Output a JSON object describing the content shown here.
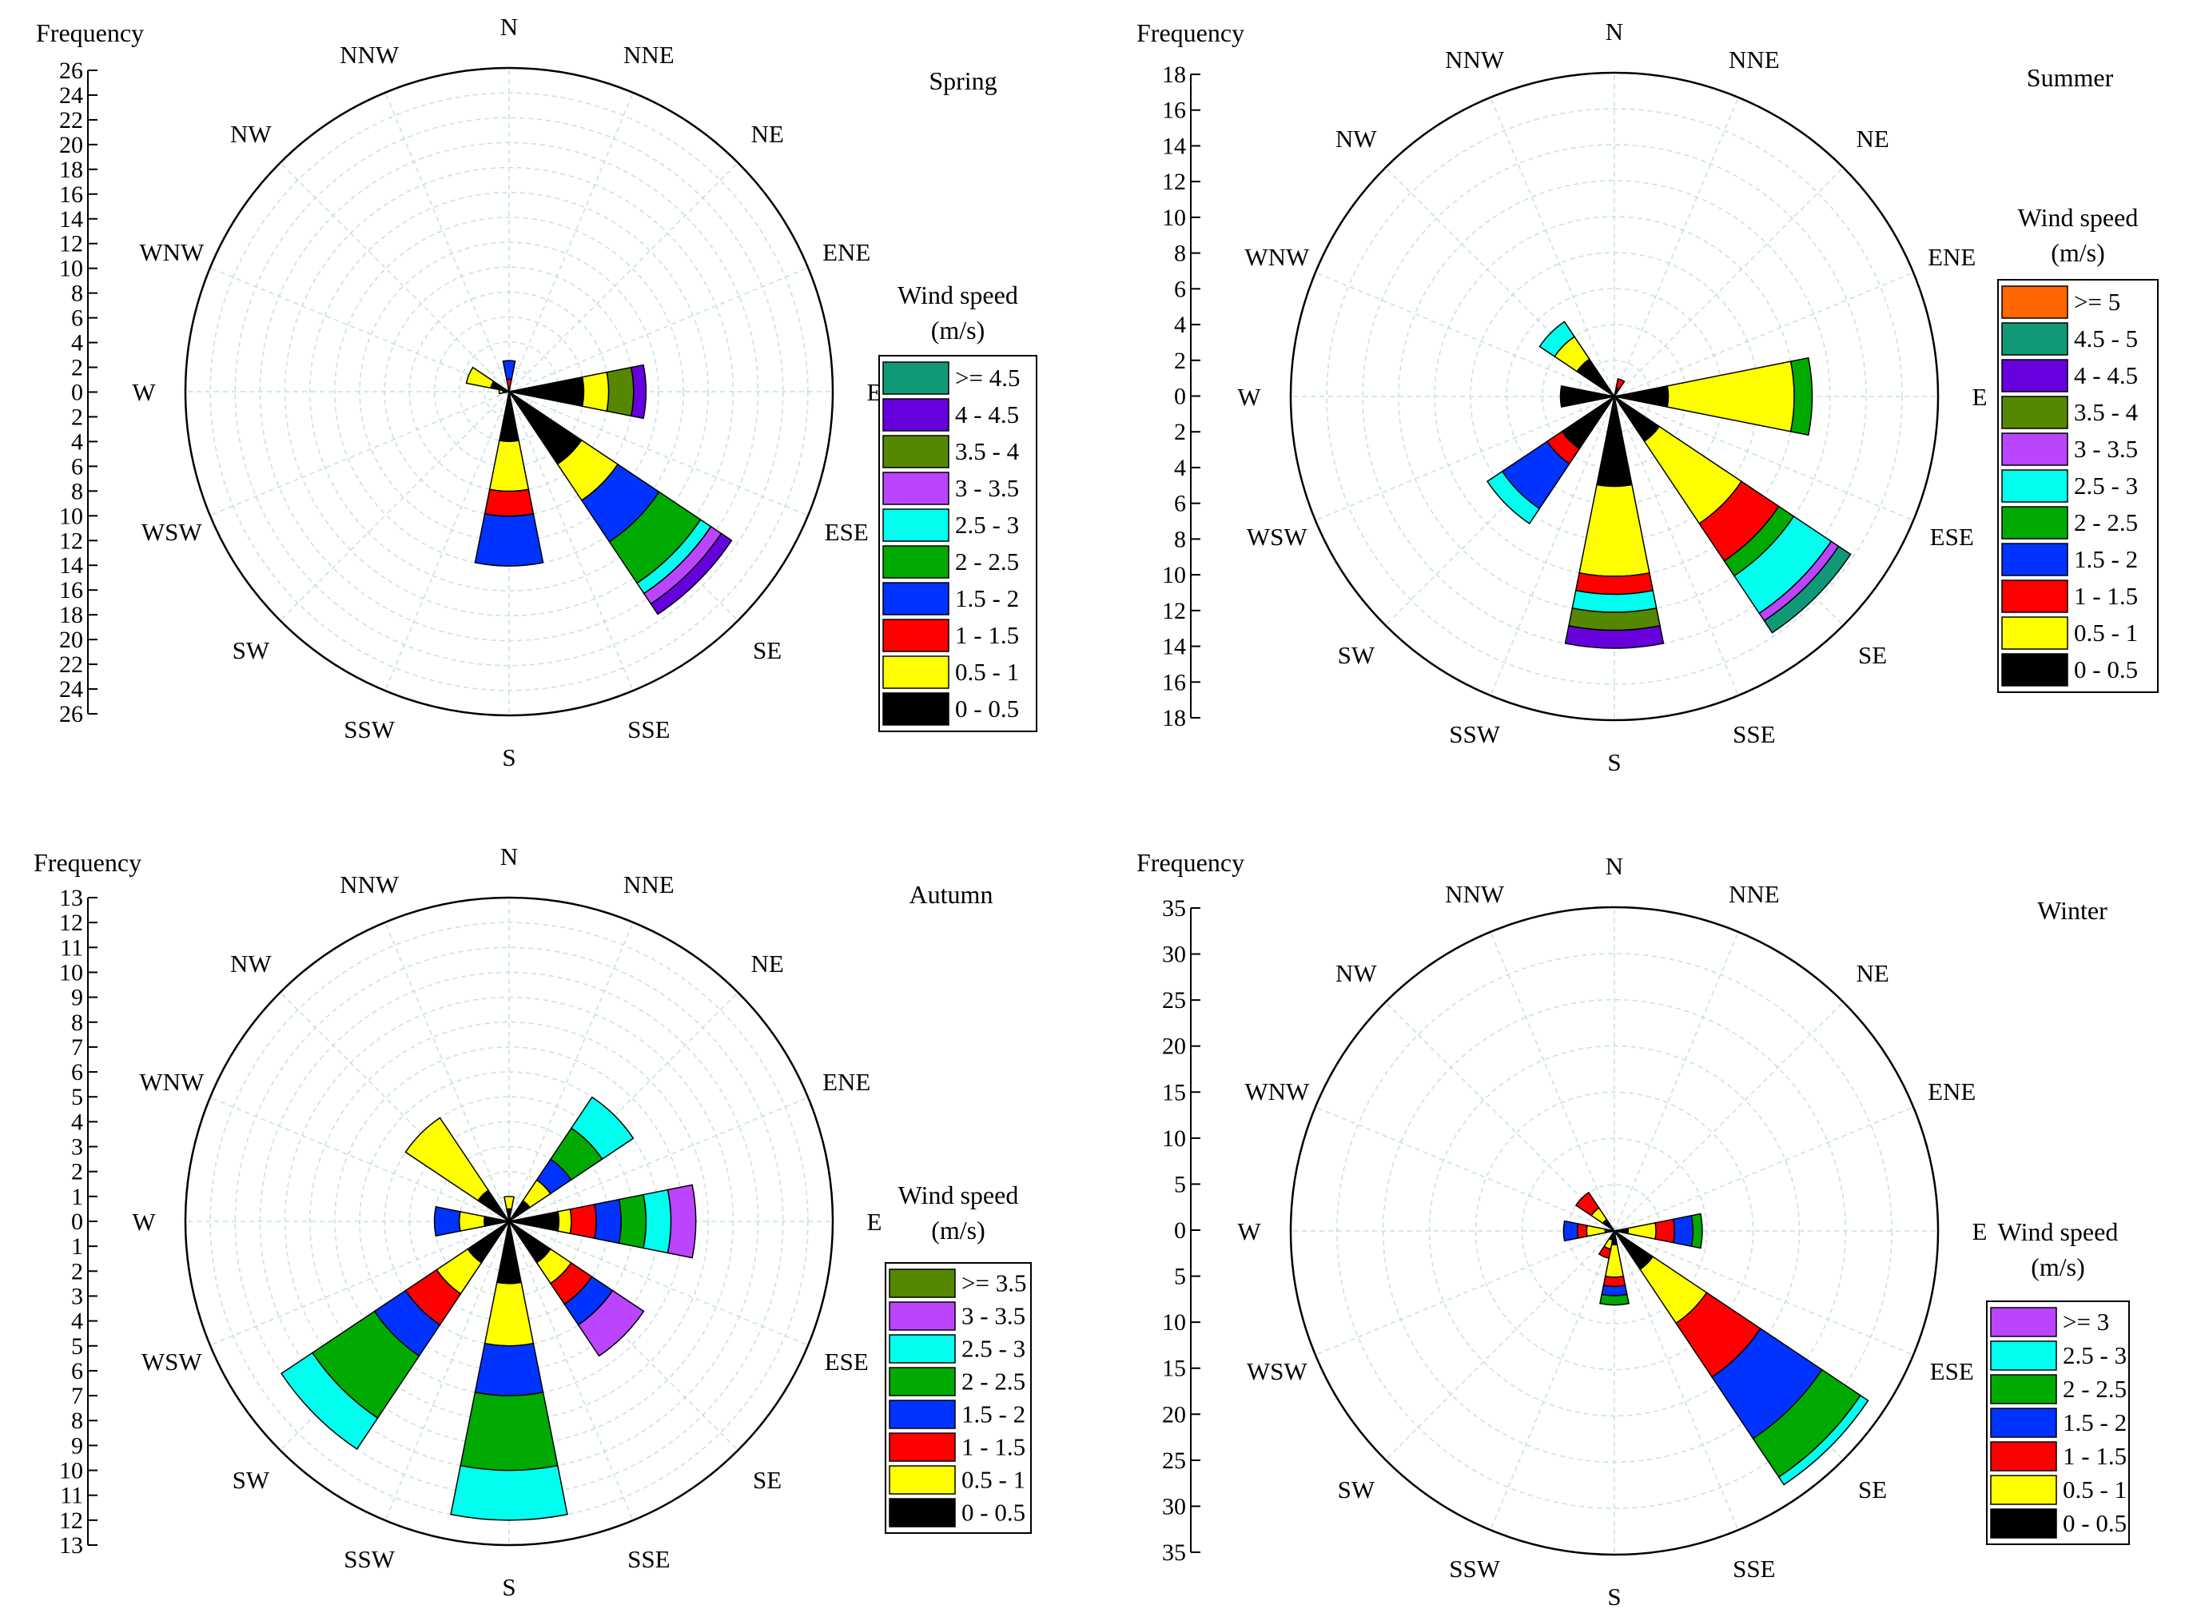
{
  "chart_data": [
    {
      "type": "wind-rose",
      "title": "Spring",
      "ylabel": "Frequency",
      "yticks": [
        "26",
        "24",
        "22",
        "20",
        "18",
        "16",
        "14",
        "12",
        "10",
        "8",
        "6",
        "4",
        "2",
        "0",
        "2",
        "4",
        "6",
        "8",
        "10",
        "12",
        "14",
        "16",
        "18",
        "20",
        "22",
        "24",
        "26"
      ],
      "rmax": 26,
      "directions": [
        "N",
        "NNE",
        "NE",
        "ENE",
        "E",
        "ESE",
        "SE",
        "SSE",
        "S",
        "SSW",
        "SW",
        "WSW",
        "W",
        "WNW",
        "NW",
        "NNW"
      ],
      "legend": {
        "title": [
          "Wind speed",
          "(m/s)"
        ],
        "placement": "right",
        "bins": [
          "0 - 0.5",
          "0.5 - 1",
          "1 - 1.5",
          "1.5 - 2",
          "2 - 2.5",
          "2.5 - 3",
          "3 - 3.5",
          "3.5 - 4",
          "4 - 4.5",
          ">= 4.5"
        ],
        "colors": [
          "#000000",
          "#ffff00",
          "#ff0000",
          "#0033ff",
          "#00aa00",
          "#00ffee",
          "#bb44ff",
          "#558800",
          "#6600dd",
          "#119977"
        ]
      },
      "series": [
        {
          "direction": "N",
          "values": [
            0,
            0,
            1.0,
            1.5,
            0,
            0,
            0,
            0,
            0,
            0
          ]
        },
        {
          "direction": "E",
          "values": [
            6.0,
            2.0,
            0,
            0,
            0,
            0,
            0,
            2.0,
            1.0,
            0
          ]
        },
        {
          "direction": "SE",
          "values": [
            7.0,
            3.5,
            0,
            4.0,
            4.0,
            1.0,
            1.0,
            0,
            1.0,
            0
          ]
        },
        {
          "direction": "S",
          "values": [
            4.0,
            4.0,
            2.0,
            4.0,
            0,
            0,
            0,
            0,
            0,
            0
          ]
        },
        {
          "direction": "W",
          "values": [
            0.5,
            0.3,
            0,
            0,
            0,
            0,
            0,
            0,
            0,
            0
          ]
        },
        {
          "direction": "WNW",
          "values": [
            1.5,
            2.0,
            0,
            0,
            0,
            0,
            0,
            0,
            0,
            0
          ]
        }
      ]
    },
    {
      "type": "wind-rose",
      "title": "Summer",
      "ylabel": "Frequency",
      "yticks": [
        "18",
        "16",
        "14",
        "12",
        "10",
        "8",
        "6",
        "4",
        "2",
        "0",
        "2",
        "4",
        "6",
        "8",
        "10",
        "12",
        "14",
        "16",
        "18"
      ],
      "rmax": 18,
      "directions": [
        "N",
        "NNE",
        "NE",
        "ENE",
        "E",
        "ESE",
        "SE",
        "SSE",
        "S",
        "SSW",
        "SW",
        "WSW",
        "W",
        "WNW",
        "NW",
        "NNW"
      ],
      "legend": {
        "title": [
          "Wind speed",
          "(m/s)"
        ],
        "placement": "right",
        "bins": [
          "0 - 0.5",
          "0.5 - 1",
          "1 - 1.5",
          "1.5 - 2",
          "2 - 2.5",
          "2.5 - 3",
          "3 - 3.5",
          "3.5 - 4",
          "4 - 4.5",
          "4.5 - 5",
          ">= 5"
        ],
        "colors": [
          "#000000",
          "#ffff00",
          "#ff0000",
          "#0033ff",
          "#00aa00",
          "#00ffee",
          "#bb44ff",
          "#558800",
          "#6600dd",
          "#119977",
          "#ff6600"
        ]
      },
      "series": [
        {
          "direction": "NNE",
          "values": [
            0.5,
            0,
            0.5,
            0,
            0,
            0,
            0,
            0,
            0,
            0,
            0
          ]
        },
        {
          "direction": "E",
          "values": [
            3.0,
            7.0,
            0,
            0,
            1.0,
            0,
            0,
            0,
            0,
            0,
            0
          ]
        },
        {
          "direction": "SE",
          "values": [
            3.0,
            5.5,
            2.5,
            0,
            1.0,
            2.5,
            0.5,
            0,
            0,
            0.8,
            0
          ]
        },
        {
          "direction": "S",
          "values": [
            5.0,
            5.0,
            1.0,
            0,
            0,
            1.0,
            0,
            1.0,
            1.0,
            0,
            0
          ]
        },
        {
          "direction": "SW",
          "values": [
            3.5,
            0,
            1.0,
            3.0,
            0,
            1.0,
            0,
            0,
            0,
            0,
            0
          ]
        },
        {
          "direction": "W",
          "values": [
            3.0,
            0,
            0,
            0,
            0,
            0,
            0,
            0,
            0,
            0,
            0
          ]
        },
        {
          "direction": "NW",
          "values": [
            2.5,
            1.5,
            0,
            0,
            0,
            1.0,
            0,
            0,
            0,
            0,
            0
          ]
        }
      ]
    },
    {
      "type": "wind-rose",
      "title": "Autumn",
      "ylabel": "Frequency",
      "yticks": [
        "13",
        "12",
        "11",
        "10",
        "9",
        "8",
        "7",
        "6",
        "5",
        "4",
        "3",
        "2",
        "1",
        "0",
        "1",
        "2",
        "3",
        "4",
        "5",
        "6",
        "7",
        "8",
        "9",
        "10",
        "11",
        "12",
        "13"
      ],
      "rmax": 13,
      "directions": [
        "N",
        "NNE",
        "NE",
        "ENE",
        "E",
        "ESE",
        "SE",
        "SSE",
        "S",
        "SSW",
        "SW",
        "WSW",
        "W",
        "WNW",
        "NW",
        "NNW"
      ],
      "legend": {
        "title": [
          "Wind speed",
          "(m/s)"
        ],
        "placement": "right",
        "bins": [
          "0 - 0.5",
          "0.5 - 1",
          "1 - 1.5",
          "1.5 - 2",
          "2 - 2.5",
          "2.5 - 3",
          "3 - 3.5",
          ">= 3.5"
        ],
        "colors": [
          "#000000",
          "#ffff00",
          "#ff0000",
          "#0033ff",
          "#00aa00",
          "#00ffee",
          "#bb44ff",
          "#558800"
        ]
      },
      "series": [
        {
          "direction": "N",
          "values": [
            0.5,
            0.5,
            0,
            0,
            0,
            0,
            0,
            0
          ]
        },
        {
          "direction": "NE",
          "values": [
            1.0,
            1.0,
            0,
            1.0,
            1.5,
            1.5,
            0,
            0
          ]
        },
        {
          "direction": "E",
          "values": [
            2.0,
            0.5,
            1.0,
            1.0,
            1.0,
            1.0,
            1.0,
            0
          ]
        },
        {
          "direction": "SE",
          "values": [
            2.0,
            1.0,
            1.0,
            1.0,
            0,
            0,
            1.5,
            0
          ]
        },
        {
          "direction": "S",
          "values": [
            2.5,
            2.5,
            0,
            2.0,
            3.0,
            2.0,
            0,
            0
          ]
        },
        {
          "direction": "SW",
          "values": [
            2.0,
            1.5,
            1.5,
            1.5,
            3.0,
            1.5,
            0,
            0
          ]
        },
        {
          "direction": "W",
          "values": [
            1.0,
            1.0,
            0,
            1.0,
            0,
            0,
            0,
            0
          ]
        },
        {
          "direction": "NW",
          "values": [
            1.5,
            3.5,
            0,
            0,
            0,
            0,
            0,
            0
          ]
        }
      ]
    },
    {
      "type": "wind-rose",
      "title": "Winter",
      "ylabel": "Frequency",
      "yticks": [
        "35",
        "30",
        "25",
        "20",
        "15",
        "10",
        "5",
        "0",
        "5",
        "10",
        "15",
        "20",
        "25",
        "30",
        "35"
      ],
      "rmax": 35,
      "directions": [
        "N",
        "NNE",
        "NE",
        "ENE",
        "E",
        "ESE",
        "SE",
        "SSE",
        "S",
        "SSW",
        "SW",
        "WSW",
        "W",
        "WNW",
        "NW",
        "NNW"
      ],
      "legend": {
        "title": [
          "Wind speed",
          "(m/s)"
        ],
        "placement": "right",
        "bins": [
          "0 - 0.5",
          "0.5 - 1",
          "1 - 1.5",
          "1.5 - 2",
          "2 - 2.5",
          "2.5 - 3",
          ">= 3"
        ],
        "colors": [
          "#000000",
          "#ffff00",
          "#ff0000",
          "#0033ff",
          "#00aa00",
          "#00ffee",
          "#bb44ff"
        ]
      },
      "series": [
        {
          "direction": "E",
          "values": [
            1.5,
            3.0,
            2.0,
            2.0,
            1.0,
            0,
            0
          ]
        },
        {
          "direction": "SE",
          "values": [
            5.0,
            7.0,
            7.0,
            8.0,
            5.0,
            1.0,
            0
          ]
        },
        {
          "direction": "S",
          "values": [
            1.5,
            3.5,
            1.0,
            1.0,
            1.0,
            0,
            0
          ]
        },
        {
          "direction": "SSW",
          "values": [
            1.0,
            1.0,
            1.0,
            0,
            0,
            0,
            0
          ]
        },
        {
          "direction": "W",
          "values": [
            1.0,
            2.0,
            1.0,
            1.5,
            0,
            0,
            0
          ]
        },
        {
          "direction": "NW",
          "values": [
            1.5,
            1.5,
            2.0,
            0,
            0,
            0,
            0
          ]
        }
      ]
    }
  ]
}
